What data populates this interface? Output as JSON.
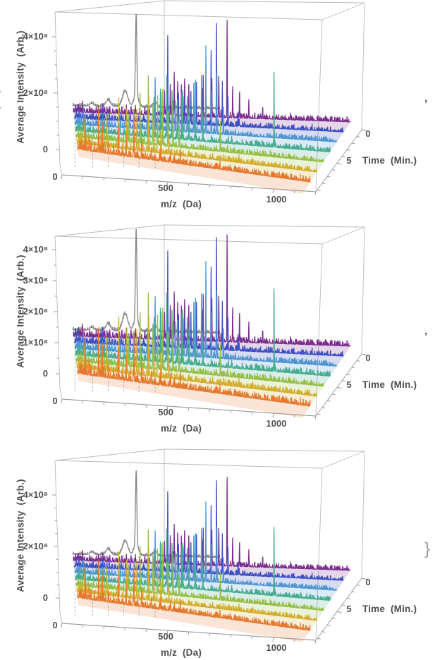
{
  "figure": {
    "open_brace": "{",
    "separators": [
      ",",
      ",",
      "}"
    ],
    "background": "#FFFFFF"
  },
  "palette": {
    "axis_text": "#4F4F4F",
    "box_edge": "#BABABA",
    "axis_line": "#9C9C9C",
    "drop_line": "#ABABAB"
  },
  "chart_data": {
    "type": "line",
    "subtype": "3d-waterfall-mass-spectra",
    "grid": false,
    "legend": false,
    "x_range": [
      0,
      1250
    ],
    "x_minor_step": 100,
    "time_range": [
      0,
      9
    ],
    "time_minor_step": 1,
    "plots": [
      {
        "ylabel": "Average Intensity  (Arb.)",
        "xlabel": "m/z  (Da)",
        "zlabel": "Time  (Min.)",
        "y_ticks": [
          {
            "label": "4×10⁸",
            "value_e8": 4
          },
          {
            "label": "2×10⁸",
            "value_e8": 2
          },
          {
            "label": "0",
            "value_e8": 0
          }
        ],
        "y_minor_step_e8": 0.5,
        "x_ticks": [
          {
            "label": "0",
            "value": 0
          },
          {
            "label": "500",
            "value": 500
          },
          {
            "label": "1000",
            "value": 1000
          }
        ],
        "time_ticks": [
          {
            "label": "0",
            "value": 0
          },
          {
            "label": "5",
            "value": 5
          }
        ],
        "ylim_e8": [
          0,
          4.8
        ],
        "separator": ","
      },
      {
        "ylabel": "Average Intensity  (Arb.)",
        "xlabel": "m/z  (Da)",
        "zlabel": "Time  (Min.)",
        "y_ticks": [
          {
            "label": "4×10⁸",
            "value_e8": 4
          },
          {
            "label": "3×10⁸",
            "value_e8": 3
          },
          {
            "label": "2×10⁸",
            "value_e8": 2
          },
          {
            "label": "1×10⁸",
            "value_e8": 1
          },
          {
            "label": "0",
            "value_e8": 0
          }
        ],
        "y_minor_step_e8": 0.5,
        "x_ticks": [
          {
            "label": "0",
            "value": 0
          },
          {
            "label": "500",
            "value": 500
          },
          {
            "label": "1000",
            "value": 1000
          }
        ],
        "time_ticks": [
          {
            "label": "0",
            "value": 0
          },
          {
            "label": "5",
            "value": 5
          }
        ],
        "ylim_e8": [
          0,
          4.4
        ],
        "separator": ","
      },
      {
        "ylabel": "Average Intensity  (Arb.)",
        "xlabel": "m/z  (Da)",
        "zlabel": "Time  (Min.)",
        "y_ticks": [
          {
            "label": "4×10⁸",
            "value_e8": 4
          },
          {
            "label": "2×10⁸",
            "value_e8": 2
          },
          {
            "label": "0",
            "value_e8": 0
          }
        ],
        "y_minor_step_e8": 0.5,
        "x_ticks": [
          {
            "label": "0",
            "value": 0
          },
          {
            "label": "500",
            "value": 500
          },
          {
            "label": "1000",
            "value": 1000
          }
        ],
        "time_ticks": [
          {
            "label": "0",
            "value": 0
          },
          {
            "label": "5",
            "value": 5
          }
        ],
        "ylim_e8": [
          0,
          5.3
        ],
        "separator": "}"
      }
    ],
    "shared_minor_peaks": [
      [
        10,
        0.45
      ],
      [
        16,
        0.3
      ],
      [
        22,
        0.55
      ],
      [
        30,
        0.35
      ],
      [
        40,
        0.8
      ],
      [
        48,
        0.3
      ],
      [
        58,
        0.25
      ],
      [
        70,
        0.2
      ],
      [
        85,
        0.22
      ],
      [
        100,
        0.2
      ],
      [
        109,
        0.5
      ],
      [
        120,
        0.4
      ],
      [
        128,
        0.6
      ],
      [
        136,
        0.45
      ],
      [
        146,
        0.3
      ],
      [
        158,
        0.35
      ],
      [
        170,
        0.25
      ],
      [
        185,
        0.3
      ],
      [
        200,
        0.28
      ],
      [
        210,
        0.5
      ],
      [
        230,
        0.4
      ],
      [
        250,
        0.55
      ],
      [
        270,
        0.35
      ],
      [
        288,
        0.3
      ],
      [
        310,
        0.45
      ],
      [
        330,
        0.4
      ],
      [
        350,
        0.35
      ],
      [
        375,
        0.3
      ],
      [
        400,
        0.35
      ],
      [
        425,
        0.3
      ],
      [
        450,
        0.28
      ],
      [
        475,
        0.25
      ],
      [
        500,
        0.3
      ],
      [
        530,
        0.22
      ],
      [
        560,
        0.25
      ],
      [
        600,
        0.2
      ],
      [
        640,
        0.22
      ],
      [
        680,
        0.18
      ],
      [
        720,
        0.25
      ],
      [
        735,
        0.3
      ],
      [
        760,
        0.15
      ],
      [
        785,
        0.22
      ],
      [
        810,
        0.2
      ],
      [
        850,
        0.14
      ],
      [
        880,
        0.2
      ],
      [
        910,
        0.12
      ],
      [
        940,
        0.16
      ],
      [
        970,
        0.1
      ],
      [
        1000,
        0.14
      ],
      [
        1030,
        0.09
      ],
      [
        1060,
        0.12
      ],
      [
        1090,
        0.08
      ],
      [
        1120,
        0.1
      ],
      [
        1150,
        0.07
      ],
      [
        1180,
        0.05
      ]
    ],
    "series": [
      {
        "name": "time-0-reference-trace",
        "color": "#8C8C8C",
        "time_min": 0,
        "style": "smooth",
        "minor_scale": 0,
        "noise_e8": 0.02,
        "mz_end": 620,
        "ribbon": false,
        "peaks_e8": [
          [
            80,
            0.1,
            12
          ],
          [
            150,
            0.22,
            14
          ],
          [
            222,
            0.55,
            16
          ],
          [
            268,
            0.4,
            14
          ],
          [
            268,
            2.9,
            4
          ],
          [
            348,
            0.22,
            10
          ]
        ],
        "drop_lines_mz": [
          10,
          85,
          150,
          215,
          280,
          348
        ]
      },
      {
        "name": "time-1",
        "color": "#7B2D8E",
        "time_min": 1,
        "minor_scale": 0.5,
        "noise_e8": 0.035,
        "ribbon": true,
        "peaks_e8": [
          [
            395,
            0.9
          ],
          [
            420,
            1.1
          ],
          [
            437,
            1.5
          ],
          [
            452,
            1.2
          ],
          [
            468,
            1.0
          ],
          [
            482,
            1.3
          ],
          [
            500,
            1.0
          ],
          [
            530,
            0.7
          ],
          [
            560,
            0.8
          ],
          [
            600,
            1.2
          ],
          [
            630,
            1.4
          ],
          [
            666,
            3.4
          ],
          [
            690,
            1.1
          ],
          [
            720,
            0.8
          ],
          [
            760,
            0.5
          ],
          [
            820,
            0.4
          ]
        ]
      },
      {
        "name": "time-2",
        "color": "#3D4FC4",
        "time_min": 2,
        "minor_scale": 0.5,
        "noise_e8": 0.035,
        "ribbon": true,
        "peaks_e8": [
          [
            417,
            3.1
          ],
          [
            440,
            0.8
          ],
          [
            465,
            1.0
          ],
          [
            490,
            0.9
          ],
          [
            520,
            1.2
          ],
          [
            545,
            1.4
          ],
          [
            575,
            1.8
          ],
          [
            610,
            2.6
          ],
          [
            634,
            3.7
          ],
          [
            660,
            1.4
          ],
          [
            685,
            1.0
          ],
          [
            730,
            0.5
          ]
        ]
      },
      {
        "name": "time-3",
        "color": "#4E95D0",
        "time_min": 3,
        "minor_scale": 0.5,
        "noise_e8": 0.035,
        "ribbon": true,
        "peaks_e8": [
          [
            368,
            1.9
          ],
          [
            395,
            1.4
          ],
          [
            430,
            0.9
          ],
          [
            460,
            1.1
          ],
          [
            490,
            1.4
          ],
          [
            515,
            1.2
          ],
          [
            545,
            1.8
          ],
          [
            580,
            2.1
          ],
          [
            600,
            3.0
          ],
          [
            625,
            1.5
          ],
          [
            650,
            2.2
          ],
          [
            680,
            0.9
          ]
        ]
      },
      {
        "name": "time-4",
        "color": "#47AC8F",
        "time_min": 4,
        "minor_scale": 0.5,
        "noise_e8": 0.035,
        "ribbon": true,
        "peaks_e8": [
          [
            340,
            1.0
          ],
          [
            370,
            1.3
          ],
          [
            400,
            1.6
          ],
          [
            430,
            2.3
          ],
          [
            455,
            1.7
          ],
          [
            480,
            1.3
          ],
          [
            505,
            1.8
          ],
          [
            535,
            1.2
          ],
          [
            565,
            2.1
          ],
          [
            600,
            0.9
          ],
          [
            935,
            2.6
          ]
        ]
      },
      {
        "name": "time-5",
        "color": "#96BE46",
        "time_min": 5,
        "minor_scale": 0.5,
        "noise_e8": 0.035,
        "ribbon": true,
        "peaks_e8": [
          [
            255,
            1.0
          ],
          [
            280,
            1.2
          ],
          [
            310,
            1.6
          ],
          [
            350,
            2.2
          ],
          [
            372,
            1.4
          ],
          [
            395,
            1.8
          ],
          [
            420,
            2.0
          ],
          [
            445,
            1.3
          ],
          [
            470,
            1.6
          ],
          [
            500,
            1.0
          ],
          [
            700,
            1.1
          ]
        ]
      },
      {
        "name": "time-6",
        "color": "#D2AC2B",
        "time_min": 6,
        "minor_scale": 0.55,
        "noise_e8": 0.035,
        "ribbon": true,
        "peaks_e8": [
          [
            109,
            0.9
          ],
          [
            150,
            1.1
          ],
          [
            210,
            1.5
          ],
          [
            250,
            1.2
          ],
          [
            300,
            1.4
          ],
          [
            360,
            1.9
          ],
          [
            385,
            1.2
          ],
          [
            420,
            0.8
          ],
          [
            460,
            0.6
          ]
        ]
      },
      {
        "name": "time-7",
        "color": "#E5782E",
        "time_min": 7,
        "minor_scale": 0.6,
        "noise_e8": 0.04,
        "ribbon": true,
        "ribbon_depth": 1.15,
        "peaks_e8": [
          [
            40,
            0.8
          ],
          [
            60,
            0.45
          ],
          [
            109,
            1.25
          ],
          [
            128,
            0.6
          ],
          [
            160,
            0.4
          ],
          [
            210,
            0.7
          ],
          [
            250,
            0.5
          ],
          [
            291,
            1.4
          ],
          [
            330,
            0.5
          ],
          [
            380,
            0.4
          ],
          [
            430,
            0.45
          ],
          [
            480,
            0.35
          ],
          [
            530,
            0.3
          ]
        ]
      }
    ]
  }
}
